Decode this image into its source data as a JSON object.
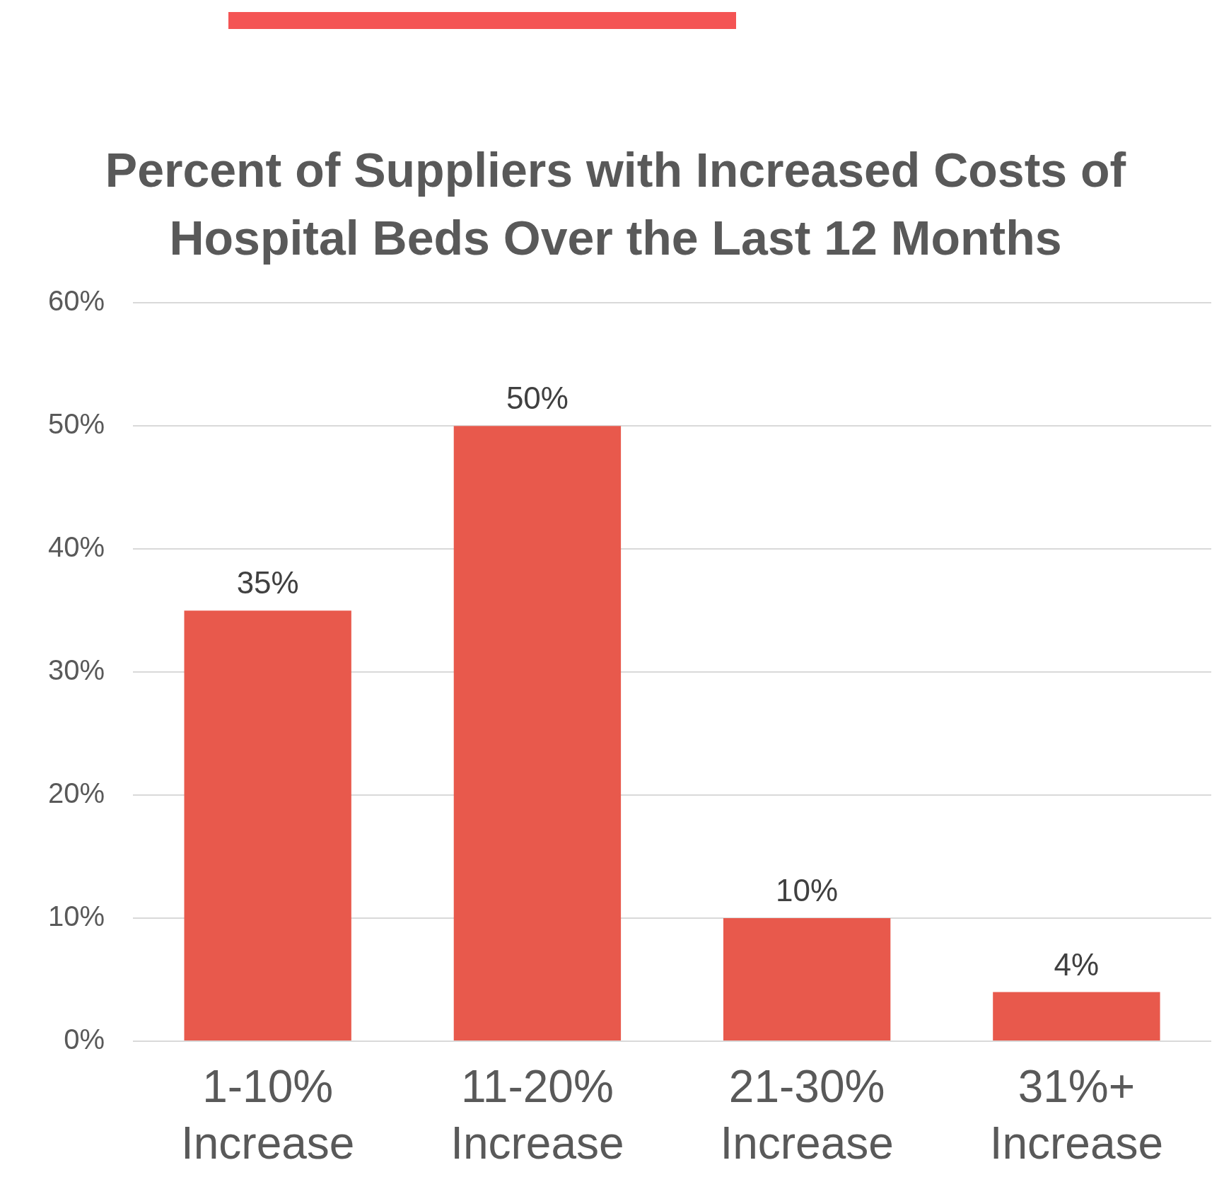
{
  "chart_data": {
    "type": "bar",
    "title": "Percent of Suppliers with Increased Costs of Hospital Beds Over the Last 12 Months",
    "categories": [
      "1-10% Increase",
      "11-20% Increase",
      "21-30% Increase",
      "31%+ Increase"
    ],
    "values": [
      35,
      50,
      10,
      4
    ],
    "value_labels": [
      "35%",
      "50%",
      "10%",
      "4%"
    ],
    "color": "#e8594c",
    "ylim": [
      0,
      60
    ],
    "yticks": [
      {
        "value": 0,
        "label": "0%"
      },
      {
        "value": 10,
        "label": "10%"
      },
      {
        "value": 20,
        "label": "20%"
      },
      {
        "value": 30,
        "label": "30%"
      },
      {
        "value": 40,
        "label": "40%"
      },
      {
        "value": 50,
        "label": "50%"
      },
      {
        "value": 60,
        "label": "60%"
      }
    ],
    "grid": "y",
    "legend": false
  }
}
